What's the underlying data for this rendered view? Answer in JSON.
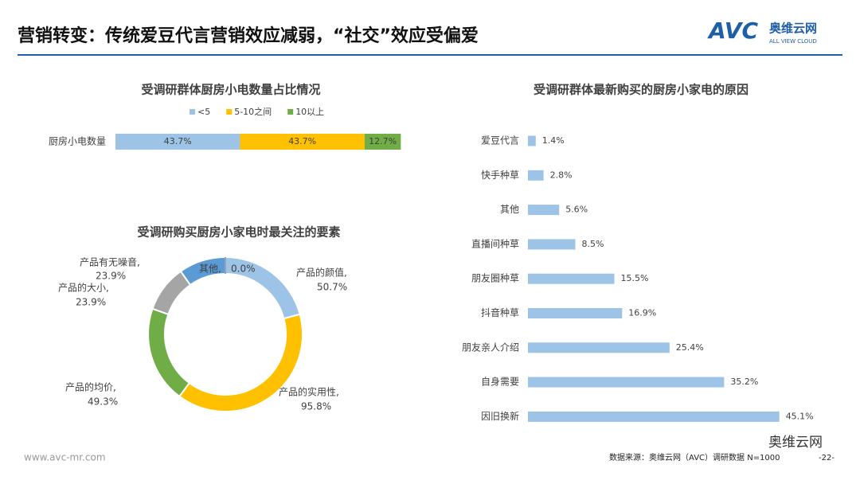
{
  "title": "营销转变：传统爱豆代言营销效应减弱，“社交”效应受偏爱",
  "logo": {
    "brand": "AVC",
    "name": "奥维云网",
    "tagline": "ALL VIEW CLOUD"
  },
  "footer": {
    "site": "www.avc-mr.com",
    "source": "数据来源：奥维云网（AVC）调研数据 N=1000",
    "page": "-22-",
    "wechat": "奥维云网"
  },
  "chart_data": [
    {
      "type": "stacked-bar",
      "title": "受调研群体厨房小电数量占比情况",
      "categories": [
        "厨房小电数量"
      ],
      "series": [
        {
          "name": "<5",
          "color": "#9dc3e6",
          "values": [
            43.7
          ],
          "value_labels": [
            "43.7%"
          ]
        },
        {
          "name": "5-10之间",
          "color": "#ffc000",
          "values": [
            43.7
          ],
          "value_labels": [
            "43.7%"
          ]
        },
        {
          "name": "10以上",
          "color": "#70ad47",
          "values": [
            12.7
          ],
          "value_labels": [
            "12.7%"
          ]
        }
      ]
    },
    {
      "type": "donut",
      "title": "受调研购买厨房小家电时最关注的要素",
      "categories": [
        "产品的颜值,",
        "产品的实用性,",
        "产品的均价,",
        "产品的大小,",
        "产品有无噪音,",
        "其他,"
      ],
      "values": [
        50.7,
        95.8,
        49.3,
        23.9,
        23.9,
        0.0
      ],
      "value_labels": [
        "50.7%",
        "95.8%",
        "49.3%",
        "23.9%",
        "23.9%",
        "0.0%"
      ],
      "colors": [
        "#9dc3e6",
        "#ffc000",
        "#70ad47",
        "#a5a5a5",
        "#5b9bd5",
        "#264478"
      ]
    },
    {
      "type": "hbar",
      "title": "受调研群体最新购买的厨房小家电的原因",
      "categories": [
        "爱豆代言",
        "快手种草",
        "其他",
        "直播间种草",
        "朋友圈种草",
        "抖音种草",
        "朋友亲人介绍",
        "自身需要",
        "因旧换新"
      ],
      "values": [
        1.4,
        2.8,
        5.6,
        8.5,
        15.5,
        16.9,
        25.4,
        35.2,
        45.1
      ],
      "value_labels": [
        "1.4%",
        "2.8%",
        "5.6%",
        "8.5%",
        "15.5%",
        "16.9%",
        "25.4%",
        "35.2%",
        "45.1%"
      ],
      "color": "#9dc3e6"
    }
  ]
}
